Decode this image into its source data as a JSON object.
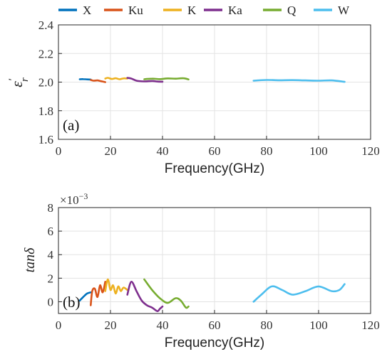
{
  "chart_data": [
    {
      "type": "line",
      "panel_label": "(a)",
      "xlabel": "Frequency(GHz)",
      "ylabel": "ε′r",
      "xlim": [
        0,
        120
      ],
      "ylim": [
        1.6,
        2.4
      ],
      "xticks": [
        0,
        20,
        40,
        60,
        80,
        100,
        120
      ],
      "yticks": [
        1.6,
        1.8,
        2.0,
        2.2,
        2.4
      ],
      "ytick_labels": [
        "1.6",
        "1.8",
        "2.0",
        "2.2",
        "2.4"
      ],
      "grid": true,
      "legend_position": "top",
      "series": [
        {
          "name": "X",
          "color": "#0072BD",
          "x": [
            8.2,
            9.5,
            11,
            12.4
          ],
          "y": [
            2.02,
            2.021,
            2.019,
            2.018
          ]
        },
        {
          "name": "Ku",
          "color": "#D95319",
          "x": [
            12.4,
            13.5,
            15,
            16.5,
            18
          ],
          "y": [
            2.015,
            2.01,
            2.012,
            2.006,
            2.0
          ]
        },
        {
          "name": "K",
          "color": "#EDB120",
          "x": [
            18,
            19,
            20.5,
            22,
            23.5,
            25,
            26.5
          ],
          "y": [
            2.025,
            2.03,
            2.022,
            2.027,
            2.02,
            2.026,
            2.025
          ]
        },
        {
          "name": "Ka",
          "color": "#7E2F8E",
          "x": [
            26.5,
            28,
            30,
            33,
            36,
            38,
            40
          ],
          "y": [
            2.03,
            2.025,
            2.01,
            2.005,
            2.008,
            2.004,
            2.003
          ]
        },
        {
          "name": "Q",
          "color": "#77AC30",
          "x": [
            33,
            36,
            39,
            42,
            45,
            48,
            50
          ],
          "y": [
            2.02,
            2.024,
            2.021,
            2.026,
            2.024,
            2.027,
            2.019
          ]
        },
        {
          "name": "W",
          "color": "#4DBEEE",
          "x": [
            75,
            80,
            85,
            90,
            95,
            100,
            105,
            110
          ],
          "y": [
            2.01,
            2.015,
            2.013,
            2.014,
            2.012,
            2.01,
            2.012,
            2.002
          ]
        }
      ]
    },
    {
      "type": "line",
      "panel_label": "(b)",
      "xlabel": "Frequency(GHz)",
      "ylabel": "tanδ",
      "multiplier": "×10",
      "multiplier_exponent": "−3",
      "xlim": [
        0,
        120
      ],
      "ylim": [
        -1,
        8
      ],
      "xticks": [
        0,
        20,
        40,
        60,
        80,
        100,
        120
      ],
      "yticks": [
        0,
        2,
        4,
        6,
        8
      ],
      "ytick_labels": [
        "0",
        "2",
        "4",
        "6",
        "8"
      ],
      "grid": true,
      "series": [
        {
          "name": "X",
          "color": "#0072BD",
          "x": [
            8.2,
            9.5,
            11,
            12.4
          ],
          "y": [
            0.1,
            0.4,
            0.7,
            0.8
          ]
        },
        {
          "name": "Ku",
          "color": "#D95319",
          "x": [
            12.4,
            13,
            14,
            15,
            16,
            17,
            18
          ],
          "y": [
            -0.3,
            0.9,
            1.1,
            0.4,
            1.4,
            0.8,
            1.7
          ]
        },
        {
          "name": "K",
          "color": "#EDB120",
          "x": [
            18,
            19,
            20,
            21,
            22,
            23,
            24,
            25,
            26.5
          ],
          "y": [
            0.9,
            1.9,
            1.0,
            1.4,
            0.7,
            1.3,
            0.9,
            1.2,
            1.0
          ]
        },
        {
          "name": "Ka",
          "color": "#7E2F8E",
          "x": [
            26.5,
            28,
            30,
            32,
            34,
            36,
            38,
            39,
            40
          ],
          "y": [
            0.6,
            1.7,
            0.9,
            0.1,
            -0.3,
            -0.5,
            -0.8,
            -0.6,
            -0.4
          ]
        },
        {
          "name": "Q",
          "color": "#77AC30",
          "x": [
            33,
            36,
            39,
            42,
            45,
            47,
            49,
            50
          ],
          "y": [
            1.9,
            1.0,
            0.3,
            -0.1,
            0.3,
            0.1,
            -0.5,
            -0.4
          ]
        },
        {
          "name": "W",
          "color": "#4DBEEE",
          "x": [
            75,
            78,
            82,
            86,
            90,
            95,
            100,
            105,
            108,
            110
          ],
          "y": [
            0.0,
            0.6,
            1.3,
            1.0,
            0.6,
            0.9,
            1.3,
            0.9,
            1.0,
            1.5
          ]
        }
      ]
    }
  ]
}
